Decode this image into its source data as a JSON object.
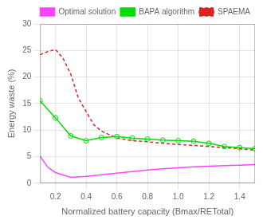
{
  "chart_data": {
    "type": "line",
    "xlabel": "Normalized battery capacity (Bmax/RETotal)",
    "ylabel": "Energy waste (%)",
    "series": [
      {
        "name": "Optimal solution",
        "color": "#ff44ff",
        "line_style": "solid",
        "x": [
          0.1,
          0.15,
          0.2,
          0.3,
          0.4,
          0.5,
          0.6,
          0.7,
          0.8,
          0.9,
          1.0,
          1.1,
          1.2,
          1.3,
          1.4,
          1.5
        ],
        "values": [
          5.1,
          3.0,
          2.0,
          1.1,
          1.3,
          1.6,
          1.9,
          2.2,
          2.5,
          2.7,
          2.9,
          3.1,
          3.2,
          3.3,
          3.4,
          3.5
        ]
      },
      {
        "name": "BAPA algorithm",
        "color": "#00dd00",
        "line_style": "solid",
        "marker": "o",
        "x": [
          0.1,
          0.2,
          0.3,
          0.4,
          0.5,
          0.6,
          0.7,
          0.8,
          0.9,
          1.0,
          1.1,
          1.2,
          1.3,
          1.4,
          1.5
        ],
        "values": [
          15.5,
          12.3,
          8.9,
          8.0,
          8.6,
          8.8,
          8.5,
          8.3,
          8.1,
          8.0,
          7.9,
          7.5,
          6.9,
          6.7,
          6.5
        ]
      },
      {
        "name": "SPAEMA",
        "color": "#dd2222",
        "line_style": "dashed",
        "x": [
          0.1,
          0.15,
          0.2,
          0.25,
          0.3,
          0.35,
          0.4,
          0.45,
          0.5,
          0.6,
          0.7,
          0.8,
          0.9,
          1.0,
          1.1,
          1.2,
          1.3,
          1.4,
          1.5
        ],
        "values": [
          24.2,
          24.8,
          25.2,
          23.5,
          20.5,
          16.0,
          13.5,
          11.0,
          9.8,
          8.5,
          8.0,
          7.8,
          7.5,
          7.3,
          7.1,
          6.9,
          6.7,
          6.5,
          6.2
        ]
      }
    ],
    "xlim": [
      0.1,
      1.5
    ],
    "xticks": [
      0.2,
      0.4,
      0.6,
      0.8,
      {
        "value": 1.0,
        "label": "1.0"
      },
      1.2,
      1.4
    ],
    "ylim": [
      0,
      30
    ],
    "yticks": [
      0,
      5,
      10,
      15,
      20,
      25,
      30
    ],
    "grid": true,
    "legend": "upper right"
  }
}
